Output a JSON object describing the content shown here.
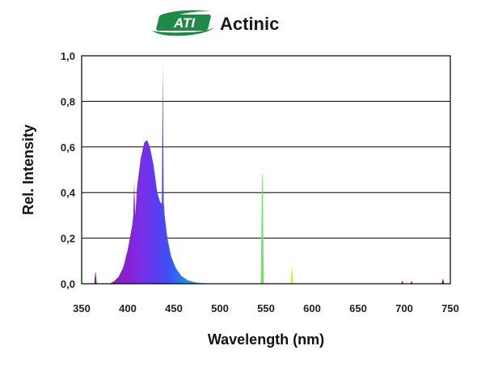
{
  "chart_data": {
    "type": "area",
    "title": "Actinic",
    "logo_text": "ATI",
    "xlabel": "Wavelength (nm)",
    "ylabel": "Rel. Intensity",
    "xlim": [
      350,
      750
    ],
    "ylim": [
      0,
      1.0
    ],
    "xticks": [
      "350",
      "400",
      "450",
      "500",
      "550",
      "600",
      "650",
      "700",
      "750"
    ],
    "yticks": [
      "0,0",
      "0,2",
      "0,4",
      "0,6",
      "0,8",
      "1,0"
    ],
    "grid": true,
    "colors": {
      "logo": "#1f8a48",
      "axis": "#000000",
      "grid": "#000000"
    },
    "series": [
      {
        "x": [
          380,
          385,
          390,
          395,
          400,
          405,
          406,
          407,
          408,
          409,
          410,
          414,
          418,
          421,
          424,
          428,
          432,
          435,
          437,
          438,
          439,
          440,
          443,
          447,
          452,
          458,
          465,
          475,
          485,
          495
        ],
        "y": [
          0.0,
          0.01,
          0.03,
          0.07,
          0.15,
          0.26,
          0.3,
          0.45,
          0.3,
          0.35,
          0.42,
          0.55,
          0.62,
          0.63,
          0.6,
          0.52,
          0.4,
          0.36,
          0.35,
          0.97,
          0.36,
          0.3,
          0.2,
          0.12,
          0.07,
          0.035,
          0.015,
          0.005,
          0.002,
          0.0
        ]
      }
    ],
    "spikes": [
      {
        "x": 365,
        "y": 0.05
      },
      {
        "x": 546,
        "y": 0.48
      },
      {
        "x": 578,
        "y": 0.07
      },
      {
        "x": 698,
        "y": 0.012
      },
      {
        "x": 708,
        "y": 0.01
      },
      {
        "x": 742,
        "y": 0.02
      }
    ]
  }
}
